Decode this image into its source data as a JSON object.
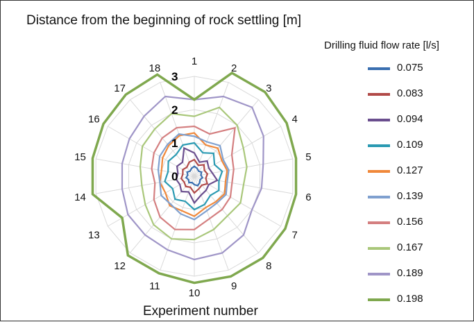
{
  "chart_data": {
    "type": "radar",
    "title": "Distance from the beginning of rock settling [m]",
    "xlabel": "Experiment number",
    "categories": [
      "1",
      "2",
      "3",
      "4",
      "5",
      "6",
      "7",
      "8",
      "9",
      "10",
      "11",
      "12",
      "13",
      "14",
      "15",
      "16",
      "17",
      "18"
    ],
    "radial_ticks": [
      "0",
      "1",
      "2",
      "3"
    ],
    "rlim": [
      0,
      3
    ],
    "grid": true,
    "legend": {
      "title": "Drilling fluid flow rate [l/s]",
      "placement": "right"
    },
    "series": [
      {
        "name": "0.075",
        "color": "#3a6fb0",
        "values": [
          0.3,
          0.25,
          0.2,
          0.25,
          0.2,
          0.25,
          0.2,
          0.25,
          0.3,
          0.25,
          0.2,
          0.25,
          0.2,
          0.25,
          0.2,
          0.25,
          0.2,
          0.25
        ]
      },
      {
        "name": "0.083",
        "color": "#b14a48",
        "values": [
          0.5,
          0.35,
          0.45,
          0.35,
          0.4,
          0.35,
          0.45,
          0.35,
          0.4,
          0.5,
          0.35,
          0.4,
          0.35,
          0.4,
          0.35,
          0.4,
          0.35,
          0.45
        ]
      },
      {
        "name": "0.094",
        "color": "#6a4e8e",
        "values": [
          0.7,
          0.45,
          0.6,
          0.5,
          0.55,
          0.7,
          0.5,
          0.55,
          0.6,
          0.8,
          0.5,
          0.6,
          0.5,
          0.55,
          0.5,
          0.6,
          0.55,
          0.9
        ]
      },
      {
        "name": "0.109",
        "color": "#2a9ab2",
        "values": [
          1.0,
          0.75,
          0.9,
          0.7,
          0.85,
          0.75,
          0.85,
          0.75,
          0.9,
          1.0,
          0.8,
          0.9,
          0.75,
          0.9,
          0.8,
          0.9,
          0.85,
          1.0
        ]
      },
      {
        "name": "0.127",
        "color": "#f0883a",
        "values": [
          1.3,
          1.0,
          1.1,
          0.95,
          1.0,
          0.95,
          1.05,
          1.0,
          1.0,
          1.2,
          1.1,
          1.15,
          1.0,
          1.05,
          1.0,
          1.1,
          1.2,
          1.3
        ]
      },
      {
        "name": "0.139",
        "color": "#7fa0cf",
        "values": [
          1.2,
          1.1,
          1.2,
          1.0,
          1.05,
          1.0,
          1.1,
          1.05,
          1.1,
          1.3,
          1.2,
          1.1,
          1.15,
          1.05,
          1.1,
          1.2,
          1.25,
          1.35
        ]
      },
      {
        "name": "0.156",
        "color": "#d47f80",
        "values": [
          1.5,
          1.35,
          1.9,
          1.3,
          1.2,
          1.15,
          1.25,
          1.3,
          1.35,
          1.6,
          1.7,
          1.6,
          1.4,
          1.2,
          1.3,
          1.4,
          1.5,
          1.55
        ]
      },
      {
        "name": "0.167",
        "color": "#a9c77a",
        "values": [
          1.8,
          2.2,
          2.0,
          1.7,
          1.6,
          1.5,
          1.6,
          1.55,
          1.7,
          1.9,
          2.0,
          1.9,
          1.7,
          1.6,
          1.65,
          1.8,
          1.85,
          2.0
        ]
      },
      {
        "name": "0.189",
        "color": "#9f95c7",
        "values": [
          2.3,
          2.55,
          2.7,
          2.4,
          2.1,
          2.05,
          2.0,
          2.3,
          2.45,
          2.5,
          2.35,
          2.3,
          2.3,
          2.2,
          2.2,
          2.25,
          2.35,
          2.55
        ]
      },
      {
        "name": "0.198",
        "color": "#7fa84e",
        "values": [
          2.3,
          3.3,
          3.3,
          3.2,
          3.1,
          3.1,
          3.15,
          3.2,
          3.2,
          3.2,
          3.1,
          3.1,
          2.5,
          3.1,
          3.1,
          3.15,
          3.2,
          3.25
        ]
      }
    ]
  }
}
